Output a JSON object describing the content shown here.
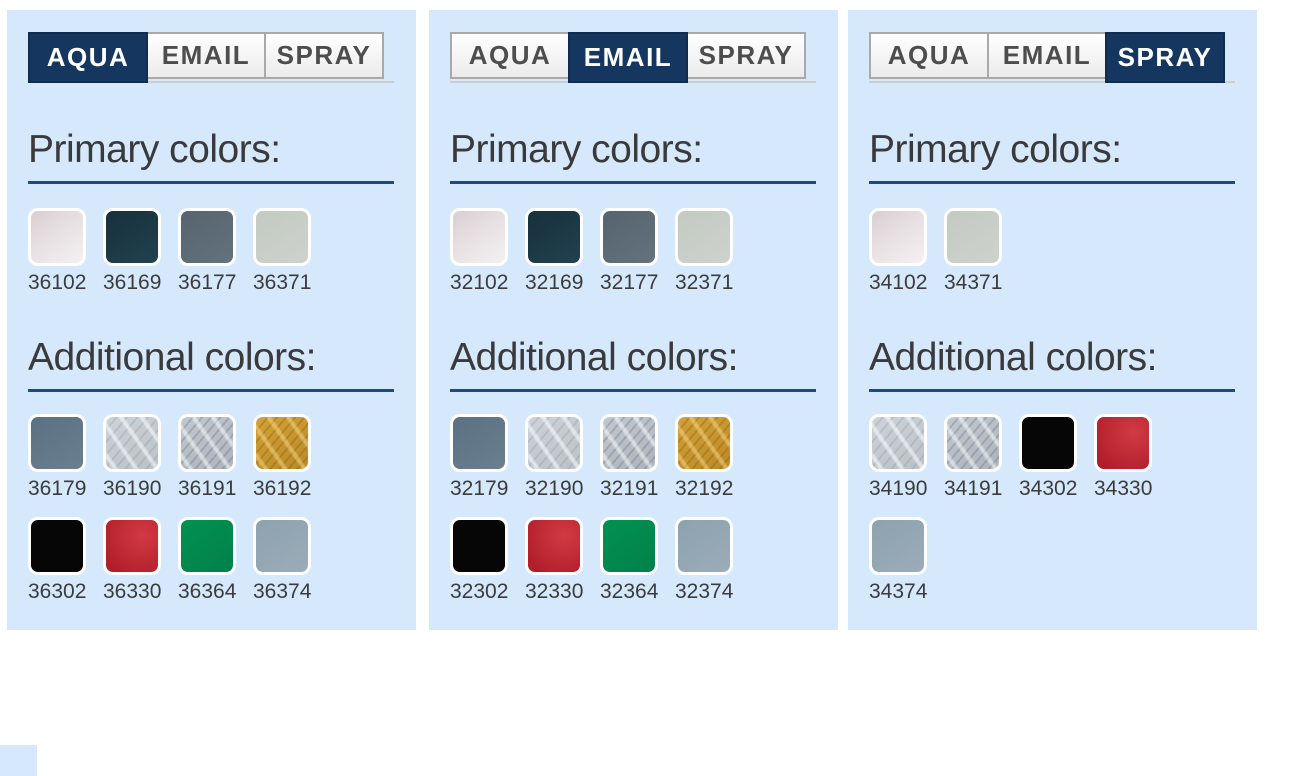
{
  "ui_colors": {
    "panel_background": "#d6e9fc",
    "tab_active_background": "#14365f",
    "tab_active_text": "#ffffff",
    "tab_inactive_text": "#4d4d4d",
    "heading_text": "#3a3a3a",
    "heading_rule": "#1c4a86",
    "code_text": "#3b3b3b"
  },
  "tab_labels": [
    "AQUA",
    "EMAIL",
    "SPRAY"
  ],
  "section_headings": {
    "primary": "Primary colors:",
    "additional": "Additional colors:"
  },
  "swatch_colors": {
    "offwhite": "#e7e0e2",
    "darkteal": "#1d3a48",
    "slate": "#5d6b77",
    "sage": "#c8cfc8",
    "bluegray": "#62788a",
    "silver-light": "#c6ccd2",
    "silver-dark": "#b7bdc5",
    "gold": "#cc9833",
    "black": "#060606",
    "red": "#c2242f",
    "green": "#019150",
    "lightslate": "#93a7b3"
  },
  "panels": [
    {
      "name": "aqua",
      "active_tab": "AQUA",
      "primary": [
        {
          "code": "36102",
          "swatch": "offwhite"
        },
        {
          "code": "36169",
          "swatch": "darkteal"
        },
        {
          "code": "36177",
          "swatch": "slate"
        },
        {
          "code": "36371",
          "swatch": "sage"
        }
      ],
      "additional_rows": [
        [
          {
            "code": "36179",
            "swatch": "bluegray"
          },
          {
            "code": "36190",
            "swatch": "silver-light"
          },
          {
            "code": "36191",
            "swatch": "silver-dark"
          },
          {
            "code": "36192",
            "swatch": "gold"
          }
        ],
        [
          {
            "code": "36302",
            "swatch": "black"
          },
          {
            "code": "36330",
            "swatch": "red"
          },
          {
            "code": "36364",
            "swatch": "green"
          },
          {
            "code": "36374",
            "swatch": "lightslate"
          }
        ]
      ]
    },
    {
      "name": "email",
      "active_tab": "EMAIL",
      "primary": [
        {
          "code": "32102",
          "swatch": "offwhite"
        },
        {
          "code": "32169",
          "swatch": "darkteal"
        },
        {
          "code": "32177",
          "swatch": "slate"
        },
        {
          "code": "32371",
          "swatch": "sage"
        }
      ],
      "additional_rows": [
        [
          {
            "code": "32179",
            "swatch": "bluegray"
          },
          {
            "code": "32190",
            "swatch": "silver-light"
          },
          {
            "code": "32191",
            "swatch": "silver-dark"
          },
          {
            "code": "32192",
            "swatch": "gold"
          }
        ],
        [
          {
            "code": "32302",
            "swatch": "black"
          },
          {
            "code": "32330",
            "swatch": "red"
          },
          {
            "code": "32364",
            "swatch": "green"
          },
          {
            "code": "32374",
            "swatch": "lightslate"
          }
        ]
      ]
    },
    {
      "name": "spray",
      "active_tab": "SPRAY",
      "primary": [
        {
          "code": "34102",
          "swatch": "offwhite"
        },
        {
          "code": "34371",
          "swatch": "sage"
        }
      ],
      "additional_rows": [
        [
          {
            "code": "34190",
            "swatch": "silver-light"
          },
          {
            "code": "34191",
            "swatch": "silver-dark"
          },
          {
            "code": "34302",
            "swatch": "black"
          },
          {
            "code": "34330",
            "swatch": "red"
          }
        ],
        [
          {
            "code": "34374",
            "swatch": "lightslate"
          }
        ]
      ]
    }
  ]
}
